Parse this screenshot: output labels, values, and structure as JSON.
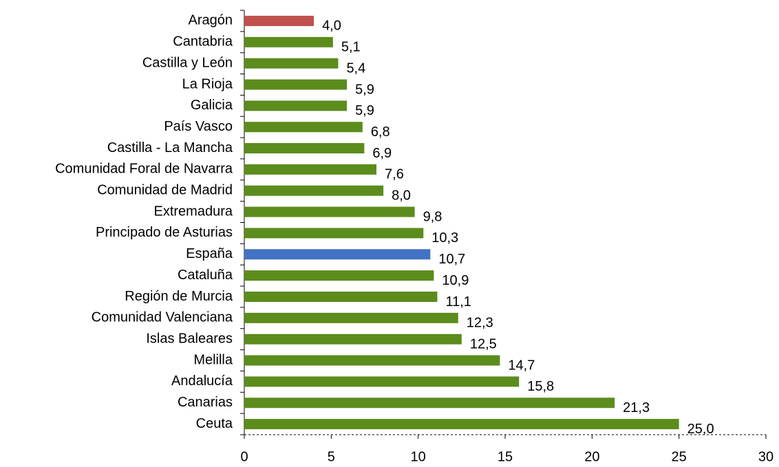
{
  "chart_data": {
    "type": "bar",
    "orientation": "horizontal",
    "categories": [
      "Aragón",
      "Cantabria",
      "Castilla y León",
      "La Rioja",
      "Galicia",
      "País Vasco",
      "Castilla - La Mancha",
      "Comunidad Foral de Navarra",
      "Comunidad de Madrid",
      "Extremadura",
      "Principado de Asturias",
      "España",
      "Cataluña",
      "Región de Murcia",
      "Comunidad Valenciana",
      "Islas Baleares",
      "Melilla",
      "Andalucía",
      "Canarias",
      "Ceuta"
    ],
    "values": [
      4.0,
      5.1,
      5.4,
      5.9,
      5.9,
      6.8,
      6.9,
      7.6,
      8.0,
      9.8,
      10.3,
      10.7,
      10.9,
      11.1,
      12.3,
      12.5,
      14.7,
      15.8,
      21.3,
      25.0
    ],
    "value_labels": [
      "4,0",
      "5,1",
      "5,4",
      "5,9",
      "5,9",
      "6,8",
      "6,9",
      "7,6",
      "8,0",
      "9,8",
      "10,3",
      "10,7",
      "10,9",
      "11,1",
      "12,3",
      "12,5",
      "14,7",
      "15,8",
      "21,3",
      "25,0"
    ],
    "colors": [
      "#c0504d",
      "#5b8c1c",
      "#5b8c1c",
      "#5b8c1c",
      "#5b8c1c",
      "#5b8c1c",
      "#5b8c1c",
      "#5b8c1c",
      "#5b8c1c",
      "#5b8c1c",
      "#5b8c1c",
      "#4472c4",
      "#5b8c1c",
      "#5b8c1c",
      "#5b8c1c",
      "#5b8c1c",
      "#5b8c1c",
      "#5b8c1c",
      "#5b8c1c",
      "#5b8c1c"
    ],
    "xlim": [
      0,
      30
    ],
    "xticks": [
      0,
      5,
      10,
      15,
      20,
      25,
      30
    ]
  }
}
